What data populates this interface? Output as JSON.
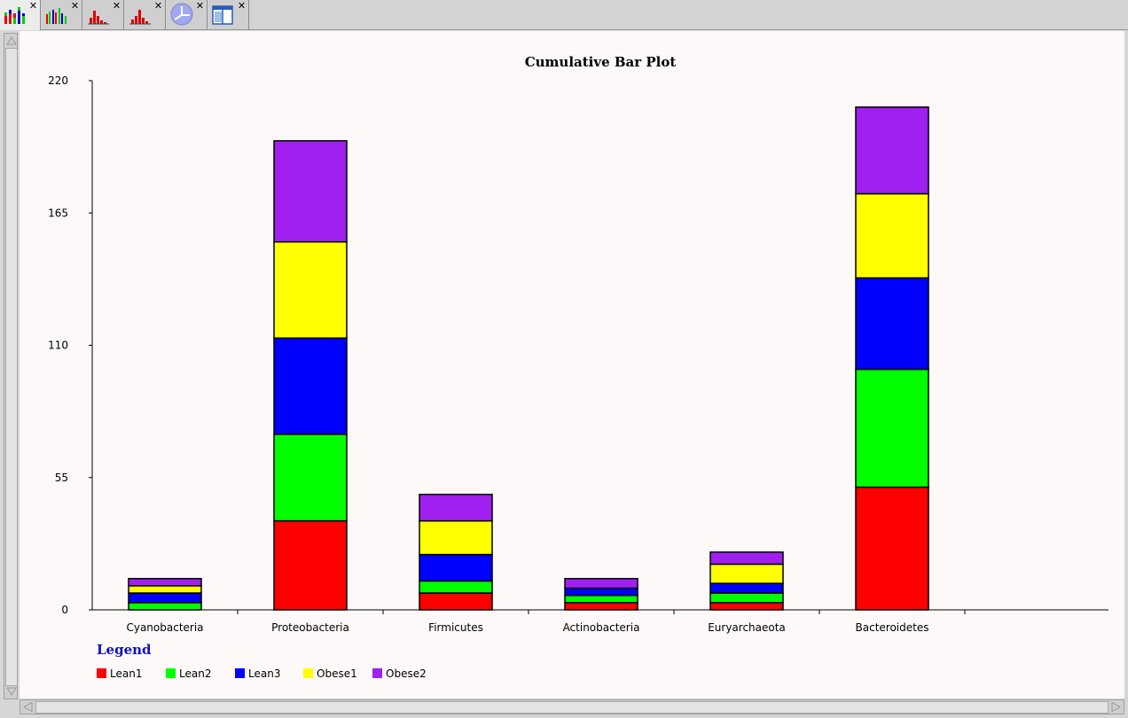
{
  "tabs": [
    {
      "icon": "stacked-bar-chart-icon",
      "active": true
    },
    {
      "icon": "grouped-bar-chart-icon",
      "active": false
    },
    {
      "icon": "histogram-icon",
      "active": false
    },
    {
      "icon": "histogram-icon",
      "active": false
    },
    {
      "icon": "axes-plot-icon",
      "active": false
    },
    {
      "icon": "table-window-icon",
      "active": false
    }
  ],
  "close_glyph": "✕",
  "legend": {
    "title": "Legend"
  },
  "colors": {
    "Lean1": "#ff0000",
    "Lean2": "#00ff00",
    "Lean3": "#0000ff",
    "Obese1": "#ffff00",
    "Obese2": "#a020f0"
  },
  "chart_data": {
    "type": "bar",
    "stacked": true,
    "title": "Cumulative Bar Plot",
    "xlabel": "",
    "ylabel": "",
    "ylim": [
      0,
      220
    ],
    "yticks": [
      0,
      55,
      110,
      165,
      220
    ],
    "grid": false,
    "legend_position": "bottom-left",
    "categories": [
      "Cyanobacteria",
      "Proteobacteria",
      "Firmicutes",
      "Actinobacteria",
      "Euryarchaeota",
      "Bacteroidetes"
    ],
    "series": [
      {
        "name": "Lean1",
        "values": [
          0,
          37,
          7,
          3,
          3,
          51
        ]
      },
      {
        "name": "Lean2",
        "values": [
          3,
          36,
          5,
          3,
          4,
          49
        ]
      },
      {
        "name": "Lean3",
        "values": [
          4,
          40,
          11,
          3,
          4,
          38
        ]
      },
      {
        "name": "Obese1",
        "values": [
          3,
          40,
          14,
          0,
          8,
          35
        ]
      },
      {
        "name": "Obese2",
        "values": [
          3,
          42,
          11,
          4,
          5,
          36
        ]
      }
    ]
  }
}
